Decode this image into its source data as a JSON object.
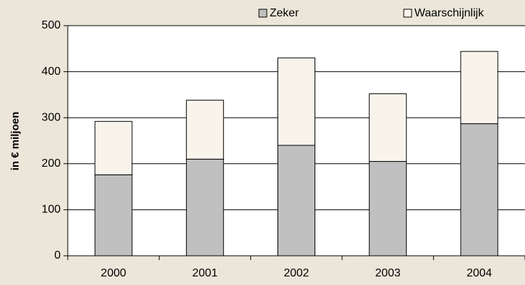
{
  "chart_data": {
    "type": "stacked_bar",
    "y_label": "in € miljoen",
    "categories": [
      "2000",
      "2001",
      "2002",
      "2003",
      "2004"
    ],
    "series": [
      {
        "name": "Zeker",
        "color": "#c0c0c0",
        "values": [
          176,
          210,
          240,
          205,
          287
        ]
      },
      {
        "name": "Waarschijnlijk",
        "color": "#f8f4ec",
        "values": [
          116,
          128,
          190,
          147,
          157
        ]
      }
    ],
    "ylim": [
      0,
      500
    ],
    "yticks": [
      0,
      100,
      200,
      300,
      400,
      500
    ],
    "grid": true,
    "legend": "top"
  }
}
